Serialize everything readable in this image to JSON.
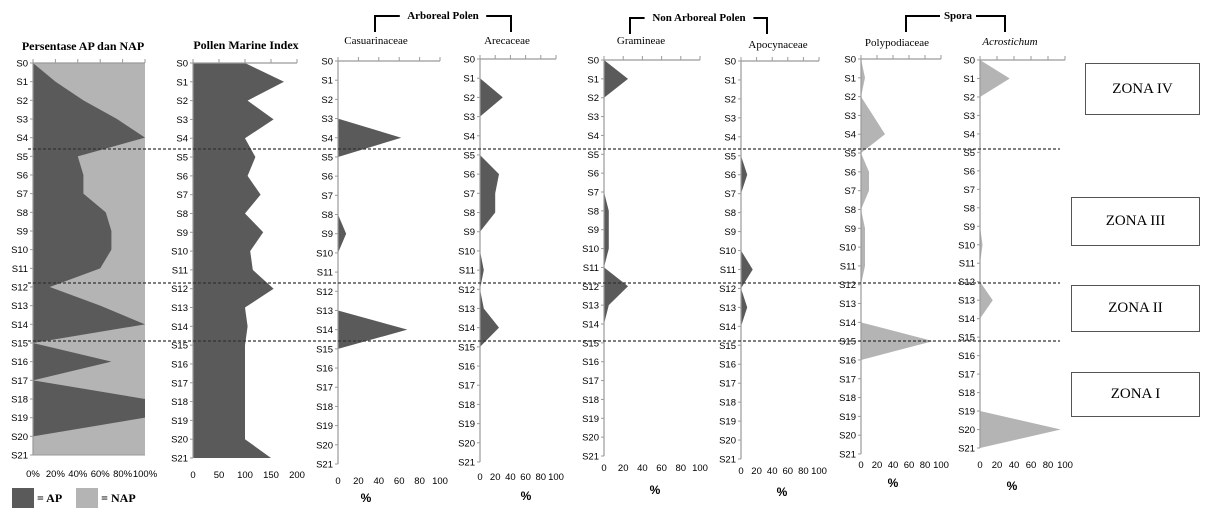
{
  "samples": [
    "S0",
    "S1",
    "S2",
    "S3",
    "S4",
    "S5",
    "S6",
    "S7",
    "S8",
    "S9",
    "S10",
    "S11",
    "S12",
    "S13",
    "S14",
    "S15",
    "S16",
    "S17",
    "S18",
    "S19",
    "S20",
    "S21"
  ],
  "colors": {
    "ap": "#5a5a5a",
    "nap": "#b4b4b4",
    "axis": "#9a9a9a",
    "zone_line": "#333333"
  },
  "group_headers": [
    {
      "label": "Arboreal Polen",
      "from_panel": 2,
      "to_panel": 3
    },
    {
      "label": "Non Arboreal Polen",
      "from_panel": 4,
      "to_panel": 5
    },
    {
      "label": "Spora",
      "from_panel": 6,
      "to_panel": 7
    }
  ],
  "zone_boundaries_after_sample": [
    "S4/S5",
    "S11/S12",
    "S14/S15"
  ],
  "zones": [
    {
      "label": "ZONA IV"
    },
    {
      "label": "ZONA III"
    },
    {
      "label": "ZONA II"
    },
    {
      "label": "ZONA I"
    }
  ],
  "legend": {
    "ap_label": "= AP",
    "nap_label": "= NAP"
  },
  "chart_data": [
    {
      "type": "area",
      "title": "Persentase AP dan NAP",
      "xlabel": "",
      "x_tick_labels": [
        "0%",
        "20%",
        "40%",
        "60%",
        "80%",
        "100%"
      ],
      "xlim": [
        0,
        100
      ],
      "series": [
        {
          "name": "AP",
          "values": [
            0,
            20,
            45,
            75,
            100,
            40,
            45,
            45,
            65,
            70,
            70,
            60,
            15,
            60,
            100,
            0,
            70,
            0,
            100,
            100,
            0,
            0
          ]
        },
        {
          "name": "NAP",
          "values": [
            100,
            80,
            55,
            25,
            0,
            60,
            55,
            55,
            35,
            30,
            30,
            40,
            85,
            40,
            0,
            100,
            30,
            100,
            0,
            0,
            100,
            100
          ]
        }
      ]
    },
    {
      "type": "area",
      "title": "Pollen Marine Index",
      "xlabel": "",
      "x_ticks": [
        0,
        50,
        100,
        150,
        200
      ],
      "xlim": [
        0,
        200
      ],
      "values": [
        100,
        175,
        105,
        155,
        100,
        120,
        105,
        130,
        100,
        135,
        110,
        115,
        155,
        100,
        105,
        100,
        100,
        100,
        100,
        100,
        100,
        150
      ]
    },
    {
      "type": "area",
      "title": "Casuarinaceae",
      "xlabel": "%",
      "x_ticks": [
        0,
        20,
        40,
        60,
        80,
        100
      ],
      "xlim": [
        0,
        100
      ],
      "values": [
        0,
        0,
        0,
        0,
        62,
        0,
        0,
        0,
        0,
        8,
        0,
        0,
        0,
        0,
        68,
        0,
        0,
        0,
        0,
        0,
        0,
        0
      ]
    },
    {
      "type": "area",
      "title": "Arecaceae",
      "xlabel": "%",
      "x_ticks": [
        0,
        20,
        40,
        60,
        80,
        100
      ],
      "xlim": [
        0,
        100
      ],
      "values": [
        0,
        0,
        30,
        0,
        0,
        0,
        25,
        20,
        20,
        0,
        0,
        5,
        0,
        5,
        25,
        0,
        0,
        0,
        0,
        0,
        0,
        0
      ]
    },
    {
      "type": "area",
      "title": "Gramineae",
      "xlabel": "%",
      "x_ticks": [
        0,
        20,
        40,
        60,
        80,
        100
      ],
      "xlim": [
        0,
        100
      ],
      "values": [
        0,
        25,
        0,
        0,
        0,
        0,
        0,
        0,
        5,
        5,
        5,
        0,
        25,
        5,
        0,
        0,
        0,
        0,
        0,
        0,
        0,
        0
      ]
    },
    {
      "type": "area",
      "title": "Apocynaceae",
      "xlabel": "%",
      "x_ticks": [
        0,
        20,
        40,
        60,
        80,
        100
      ],
      "xlim": [
        0,
        100
      ],
      "values": [
        0,
        0,
        0,
        0,
        0,
        0,
        8,
        0,
        0,
        0,
        0,
        15,
        0,
        8,
        0,
        0,
        0,
        0,
        0,
        0,
        0,
        0
      ]
    },
    {
      "type": "area",
      "title": "Polypodiaceae",
      "xlabel": "%",
      "x_ticks": [
        0,
        20,
        40,
        60,
        80,
        100
      ],
      "xlim": [
        0,
        100
      ],
      "values": [
        0,
        5,
        0,
        15,
        30,
        0,
        10,
        10,
        0,
        5,
        5,
        5,
        0,
        0,
        0,
        90,
        0,
        0,
        0,
        0,
        0,
        0
      ]
    },
    {
      "type": "area",
      "title": "Acrostichum",
      "xlabel": "%",
      "x_ticks": [
        0,
        20,
        40,
        60,
        80,
        100
      ],
      "xlim": [
        0,
        100
      ],
      "values": [
        0,
        35,
        0,
        0,
        0,
        0,
        0,
        0,
        0,
        0,
        3,
        0,
        0,
        15,
        0,
        0,
        0,
        0,
        0,
        0,
        95,
        0
      ]
    }
  ]
}
